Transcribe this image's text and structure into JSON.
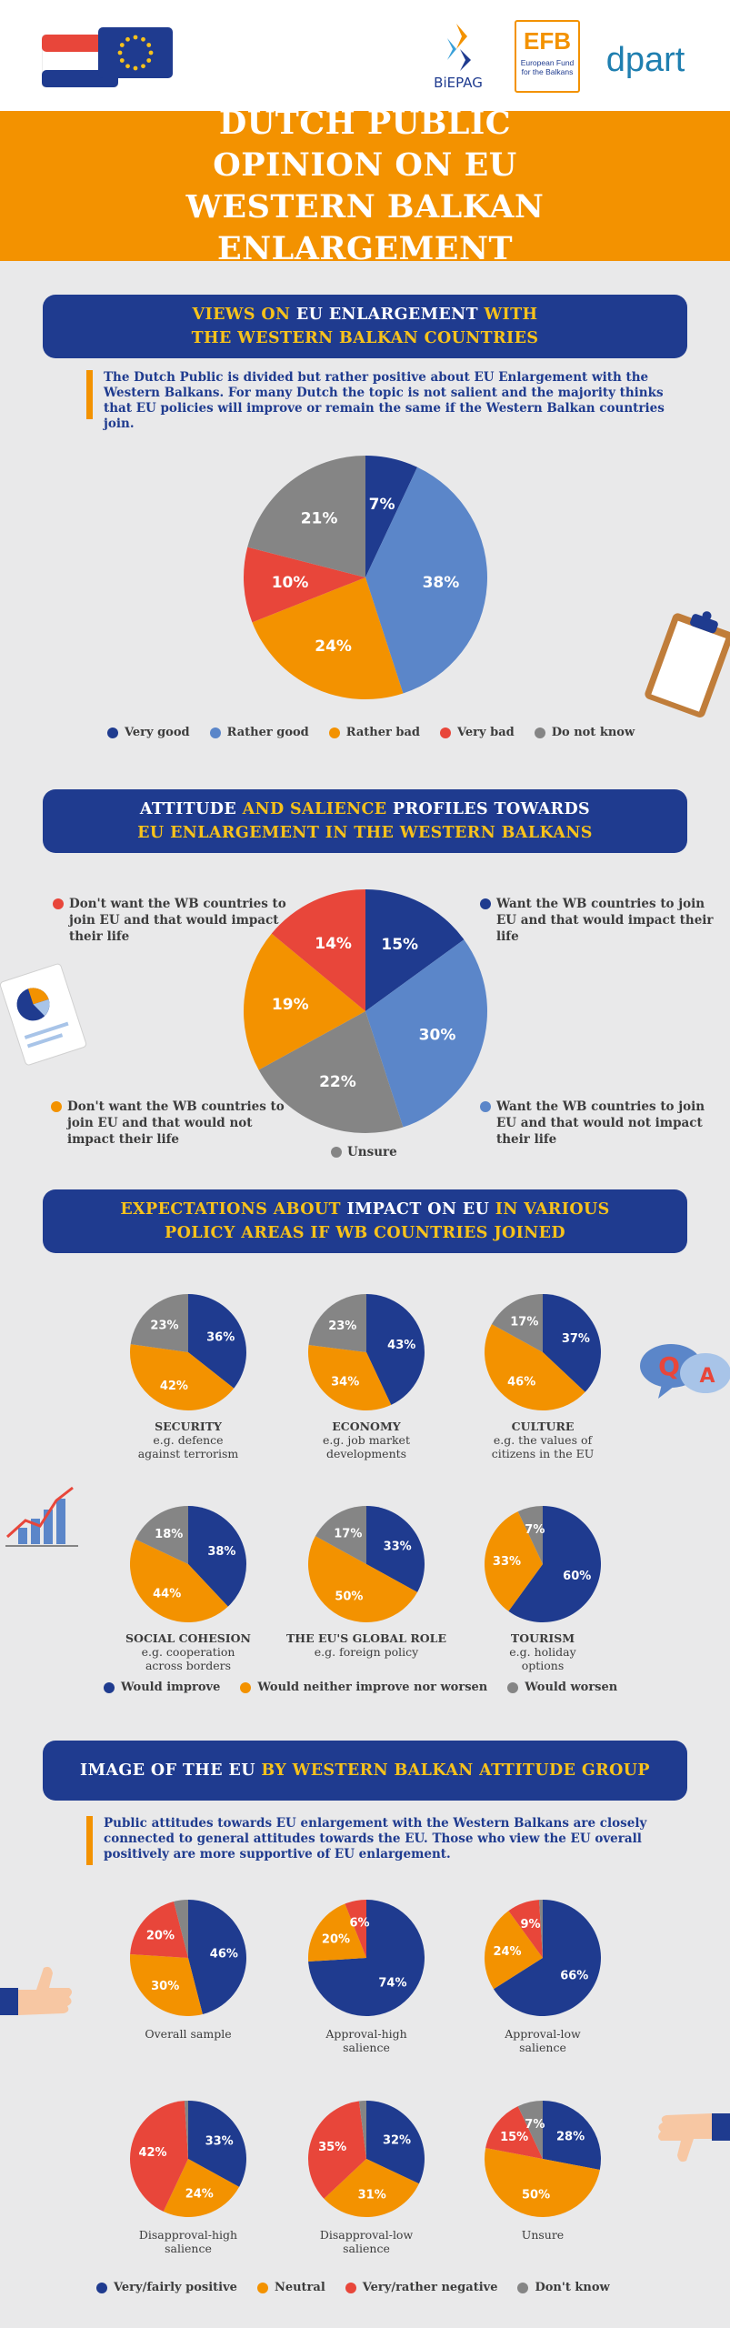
{
  "header": {
    "logos": [
      {
        "name": "biepag-logo",
        "text": "BiEPAG"
      },
      {
        "name": "efb-logo",
        "text": "EFB",
        "subtext": "European Fund for the Balkans"
      },
      {
        "name": "dpart-logo",
        "text": "dpart"
      }
    ]
  },
  "title": "DUTCH PUBLIC OPINION ON EU WESTERN BALKAN ENLARGEMENT",
  "colors": {
    "darkblue": "#1f3b8f",
    "lightblue": "#5b86c9",
    "orange": "#f39200",
    "red": "#e8463a",
    "grey": "#858585",
    "yellow": "#f7c21b"
  },
  "section1": {
    "heading_parts": [
      {
        "text": "VIEWS ON ",
        "style": "y"
      },
      {
        "text": "EU ENLARGEMENT ",
        "style": "w"
      },
      {
        "text": "WITH",
        "style": "y"
      },
      {
        "text": "\nTHE WESTERN BALKAN COUNTRIES",
        "style": "y"
      }
    ],
    "intro": "The Dutch Public is divided but rather positive about EU Enlargement with the Western Balkans. For many Dutch the topic is not salient and the majority thinks that EU policies will improve or remain the same if the Western Balkan countries join.",
    "legend": [
      {
        "label": "Very good",
        "color": "#1f3b8f"
      },
      {
        "label": "Rather good",
        "color": "#5b86c9"
      },
      {
        "label": "Rather bad",
        "color": "#f39200"
      },
      {
        "label": "Very bad",
        "color": "#e8463a"
      },
      {
        "label": "Do not know",
        "color": "#858585"
      }
    ]
  },
  "section2": {
    "heading_parts": [
      {
        "text": "ATTITUDE ",
        "style": "w"
      },
      {
        "text": "AND SALIENCE ",
        "style": "y"
      },
      {
        "text": "PROFILES TOWARDS",
        "style": "w"
      },
      {
        "text": "\nEU ENLARGEMENT IN THE WESTERN BALKANS",
        "style": "y"
      }
    ],
    "callouts": {
      "want_impact": "Want the WB countries to join EU and that would impact their life",
      "dont_want_impact": "Don't want the WB countries to join EU and that would impact their life",
      "dont_want_no_impact": "Don't want the WB countries to join EU and that would not impact their life",
      "want_no_impact": "Want the WB countries to join EU and that would not impact their life",
      "unsure": "Unsure"
    }
  },
  "section3": {
    "heading_parts": [
      {
        "text": "EXPECTATIONS ABOUT ",
        "style": "y"
      },
      {
        "text": "IMPACT ON EU ",
        "style": "w"
      },
      {
        "text": "IN VARIOUS",
        "style": "y"
      },
      {
        "text": "\nPOLICY AREAS IF WB COUNTRIES JOINED",
        "style": "y"
      }
    ],
    "areas": [
      {
        "name": "SECURITY",
        "desc": "e.g. defence against terrorism"
      },
      {
        "name": "ECONOMY",
        "desc": "e.g. job market developments"
      },
      {
        "name": "CULTURE",
        "desc": "e.g. the values of citizens in the EU"
      },
      {
        "name": "SOCIAL COHESION",
        "desc": "e.g. cooperation across borders"
      },
      {
        "name": "THE EU'S GLOBAL ROLE",
        "desc": "e.g. foreign policy"
      },
      {
        "name": "TOURISM",
        "desc": "e.g. holiday options"
      }
    ],
    "legend": [
      {
        "label": "Would improve",
        "color": "#1f3b8f"
      },
      {
        "label": "Would neither improve nor worsen",
        "color": "#f39200"
      },
      {
        "label": "Would worsen",
        "color": "#858585"
      }
    ]
  },
  "section4": {
    "heading_parts": [
      {
        "text": "IMAGE OF THE EU ",
        "style": "w"
      },
      {
        "text": "BY WESTERN BALKAN ATTITUDE GROUP",
        "style": "y"
      }
    ],
    "intro": "Public attitudes towards EU enlargement with the Western Balkans are closely connected to general attitudes towards the EU. Those who view the EU overall positively are more supportive of EU enlargement.",
    "groups": [
      {
        "name": "Overall sample"
      },
      {
        "name": "Approval-high salience"
      },
      {
        "name": "Approval-low salience"
      },
      {
        "name": "Disapproval-high salience"
      },
      {
        "name": "Disapproval-low salience"
      },
      {
        "name": "Unsure"
      }
    ],
    "legend": [
      {
        "label": "Very/fairly positive",
        "color": "#1f3b8f"
      },
      {
        "label": "Neutral",
        "color": "#f39200"
      },
      {
        "label": "Very/rather negative",
        "color": "#e8463a"
      },
      {
        "label": "Don't know",
        "color": "#858585"
      }
    ]
  },
  "chart_data": [
    {
      "type": "pie",
      "title": "VIEWS ON EU ENLARGEMENT WITH THE WESTERN BALKAN COUNTRIES",
      "categories": [
        "Very good",
        "Rather good",
        "Rather bad",
        "Very bad",
        "Do not know"
      ],
      "values": [
        7,
        38,
        24,
        10,
        21
      ],
      "colors": [
        "#1f3b8f",
        "#5b86c9",
        "#f39200",
        "#e8463a",
        "#858585"
      ]
    },
    {
      "type": "pie",
      "title": "ATTITUDE AND SALIENCE PROFILES TOWARDS EU ENLARGEMENT IN THE WESTERN BALKANS",
      "categories": [
        "Want the WB countries to join EU and that would impact their life",
        "Want the WB countries to join EU and that would not impact their life",
        "Unsure",
        "Don't want the WB countries to join EU and that would not impact their life",
        "Don't want the WB countries to join EU and that would impact their life"
      ],
      "values": [
        15,
        30,
        22,
        19,
        14
      ],
      "colors": [
        "#1f3b8f",
        "#5b86c9",
        "#858585",
        "#f39200",
        "#e8463a"
      ]
    },
    {
      "type": "pie",
      "title": "EXPECTATIONS ABOUT IMPACT ON EU IN VARIOUS POLICY AREAS IF WB COUNTRIES JOINED",
      "categories": [
        "Would improve",
        "Would neither improve nor worsen",
        "Would worsen"
      ],
      "colors": [
        "#1f3b8f",
        "#f39200",
        "#858585"
      ],
      "series": [
        {
          "name": "SECURITY",
          "values": [
            36,
            42,
            23
          ]
        },
        {
          "name": "ECONOMY",
          "values": [
            43,
            34,
            23
          ]
        },
        {
          "name": "CULTURE",
          "values": [
            37,
            46,
            17
          ]
        },
        {
          "name": "SOCIAL COHESION",
          "values": [
            38,
            44,
            18
          ]
        },
        {
          "name": "THE EU'S GLOBAL ROLE",
          "values": [
            33,
            50,
            17
          ]
        },
        {
          "name": "TOURISM",
          "values": [
            60,
            33,
            7
          ]
        }
      ]
    },
    {
      "type": "pie",
      "title": "IMAGE OF THE EU BY WESTERN BALKAN ATTITUDE GROUP",
      "categories": [
        "Very/fairly positive",
        "Neutral",
        "Very/rather negative",
        "Don't know"
      ],
      "colors": [
        "#1f3b8f",
        "#f39200",
        "#e8463a",
        "#858585"
      ],
      "series": [
        {
          "name": "Overall sample",
          "values": [
            46,
            30,
            20,
            4
          ]
        },
        {
          "name": "Approval-high salience",
          "values": [
            74,
            20,
            6,
            0
          ]
        },
        {
          "name": "Approval-low salience",
          "values": [
            66,
            24,
            9,
            1
          ]
        },
        {
          "name": "Disapproval-high salience",
          "values": [
            33,
            24,
            42,
            1
          ]
        },
        {
          "name": "Disapproval-low salience",
          "values": [
            32,
            31,
            35,
            2
          ]
        },
        {
          "name": "Unsure",
          "values": [
            28,
            50,
            15,
            7
          ]
        }
      ]
    }
  ]
}
